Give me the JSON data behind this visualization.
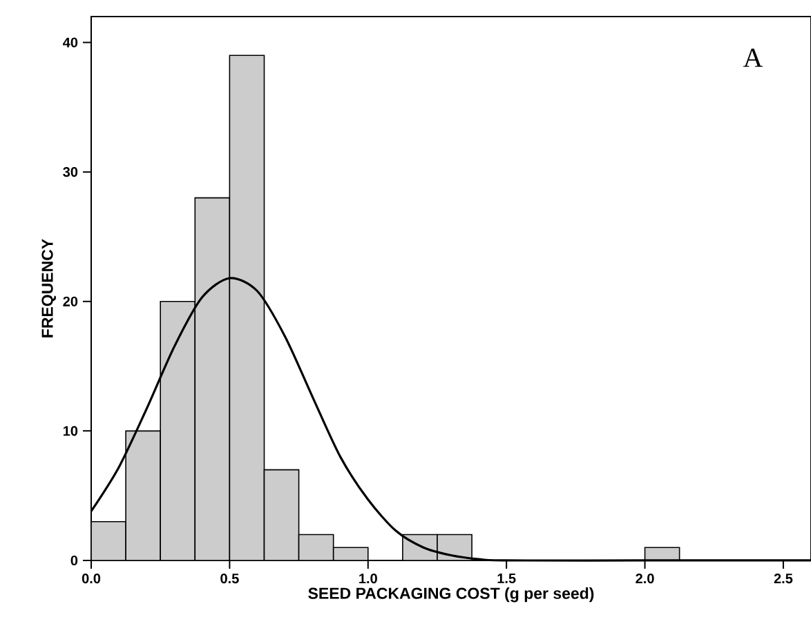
{
  "chart_data": {
    "type": "histogram",
    "xlabel": "SEED PACKAGING COST (g per seed)",
    "ylabel": "FREQUENCY",
    "bins": [
      0,
      0.125,
      0.25,
      0.375,
      0.5,
      0.625,
      0.75,
      0.875,
      1.0,
      1.125,
      1.25,
      1.375,
      1.5,
      1.625,
      1.75,
      1.875,
      2.0,
      2.125
    ],
    "values": [
      3,
      10,
      20,
      28,
      39,
      7,
      2,
      1,
      0,
      2,
      2,
      0,
      0,
      0,
      0,
      0,
      1
    ],
    "color": "#cccccc",
    "series": [
      {
        "type": "line",
        "color": "#000000",
        "x": [
          0,
          0.1,
          0.2,
          0.3,
          0.4,
          0.5,
          0.6,
          0.7,
          0.8,
          0.9,
          1.0,
          1.1,
          1.2,
          1.3,
          1.4,
          1.5,
          2.0,
          2.6
        ],
        "values": [
          3.8,
          7.2,
          11.7,
          16.5,
          20.3,
          21.8,
          20.8,
          17.3,
          12.6,
          8.0,
          4.7,
          2.3,
          1.0,
          0.4,
          0.1,
          0,
          0,
          0
        ]
      }
    ],
    "xlim": [
      0,
      2.6
    ],
    "ylim": [
      0,
      42
    ],
    "xticks": [
      {
        "value": 0,
        "label": "0.0"
      },
      0.5,
      {
        "value": 1,
        "label": "1.0"
      },
      1.5,
      {
        "value": 2,
        "label": "2.0"
      },
      2.5
    ],
    "yticks": [
      0,
      10,
      20,
      30,
      40
    ],
    "annotations": [
      "A"
    ],
    "grid": false,
    "marker": "none",
    "line_style": "solid"
  }
}
